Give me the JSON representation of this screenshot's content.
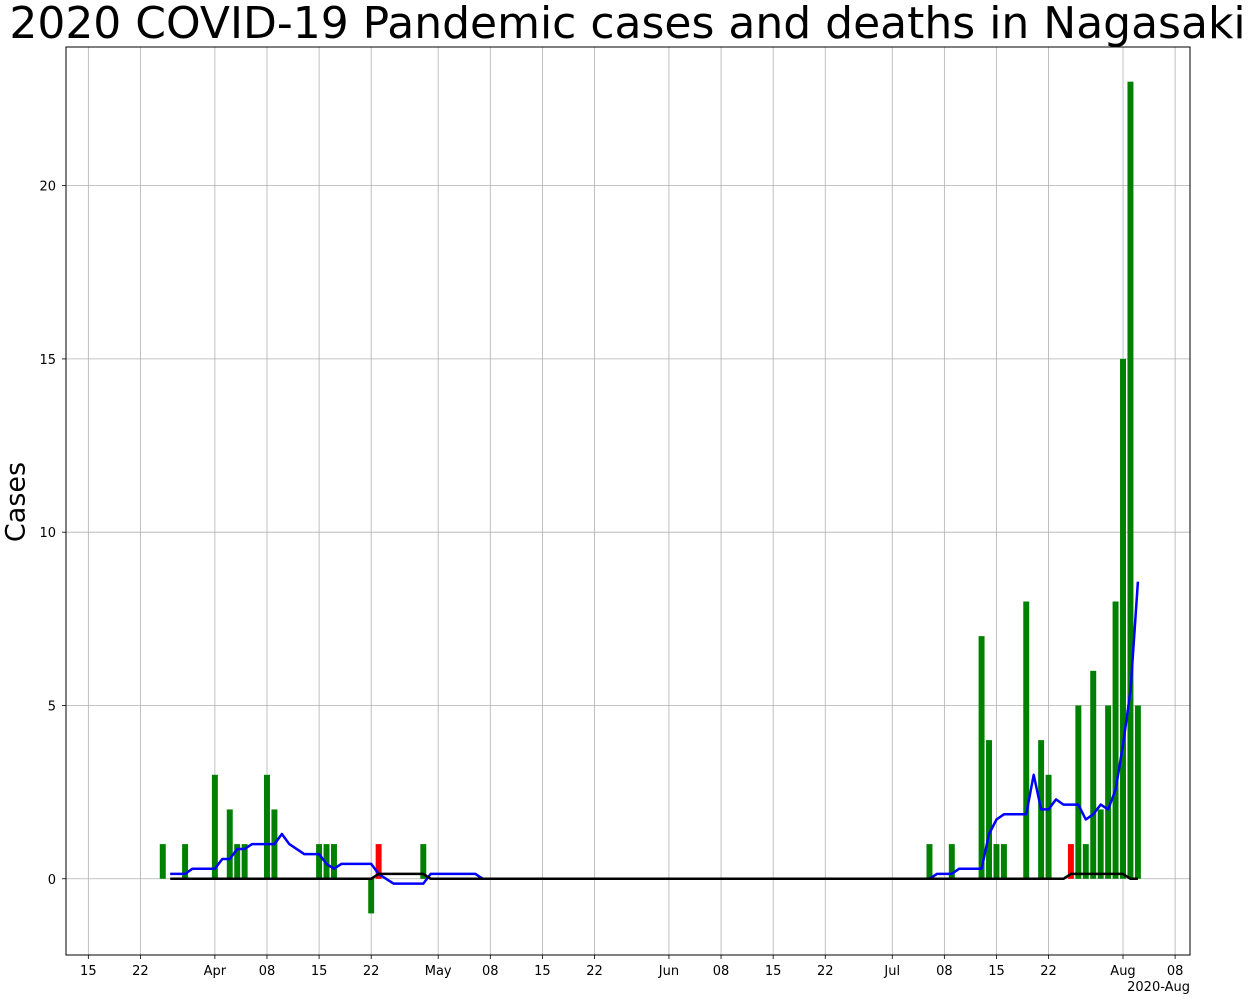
{
  "chart_data": {
    "type": "bar",
    "title": "2020 COVID-19 Pandemic cases and deaths in Nagasaki",
    "ylabel": "Cases",
    "xlabel": "",
    "ylim": [
      -2.2,
      24.0
    ],
    "yticks": [
      0,
      5,
      10,
      15,
      20
    ],
    "x_axis_offset_label": "2020-Aug",
    "x_date_start": "2020-03-12",
    "x_date_end": "2020-08-10",
    "x_ticks": [
      {
        "date": "2020-03-15",
        "label": "15"
      },
      {
        "date": "2020-03-22",
        "label": "22"
      },
      {
        "date": "2020-04-01",
        "label": "Apr"
      },
      {
        "date": "2020-04-08",
        "label": "08"
      },
      {
        "date": "2020-04-15",
        "label": "15"
      },
      {
        "date": "2020-04-22",
        "label": "22"
      },
      {
        "date": "2020-05-01",
        "label": "May"
      },
      {
        "date": "2020-05-08",
        "label": "08"
      },
      {
        "date": "2020-05-15",
        "label": "15"
      },
      {
        "date": "2020-05-22",
        "label": "22"
      },
      {
        "date": "2020-06-01",
        "label": "Jun"
      },
      {
        "date": "2020-06-08",
        "label": "08"
      },
      {
        "date": "2020-06-15",
        "label": "15"
      },
      {
        "date": "2020-06-22",
        "label": "22"
      },
      {
        "date": "2020-07-01",
        "label": "Jul"
      },
      {
        "date": "2020-07-08",
        "label": "08"
      },
      {
        "date": "2020-07-15",
        "label": "15"
      },
      {
        "date": "2020-07-22",
        "label": "22"
      },
      {
        "date": "2020-08-01",
        "label": "Aug"
      },
      {
        "date": "2020-08-08",
        "label": "08"
      }
    ],
    "grid": true,
    "colors": {
      "cases": "#008000",
      "deaths": "#ff0000",
      "average": "#0000ff",
      "deaths_line": "#000000"
    },
    "series": [
      {
        "type": "bar",
        "values": [
          [
            "2020-03-25",
            1
          ],
          [
            "2020-03-28",
            1
          ],
          [
            "2020-04-01",
            3
          ],
          [
            "2020-04-03",
            2
          ],
          [
            "2020-04-04",
            1
          ],
          [
            "2020-04-05",
            1
          ],
          [
            "2020-04-08",
            3
          ],
          [
            "2020-04-09",
            2
          ],
          [
            "2020-04-15",
            1
          ],
          [
            "2020-04-16",
            1
          ],
          [
            "2020-04-17",
            1
          ],
          [
            "2020-04-22",
            -1
          ],
          [
            "2020-04-29",
            1
          ],
          [
            "2020-07-06",
            1
          ],
          [
            "2020-07-09",
            1
          ],
          [
            "2020-07-13",
            7
          ],
          [
            "2020-07-14",
            4
          ],
          [
            "2020-07-15",
            1
          ],
          [
            "2020-07-16",
            1
          ],
          [
            "2020-07-19",
            8
          ],
          [
            "2020-07-21",
            4
          ],
          [
            "2020-07-22",
            3
          ],
          [
            "2020-07-26",
            5
          ],
          [
            "2020-07-27",
            1
          ],
          [
            "2020-07-28",
            6
          ],
          [
            "2020-07-29",
            2
          ],
          [
            "2020-07-30",
            5
          ],
          [
            "2020-07-31",
            8
          ],
          [
            "2020-08-01",
            15
          ],
          [
            "2020-08-02",
            23
          ],
          [
            "2020-08-03",
            5
          ]
        ]
      },
      {
        "type": "bar",
        "values": [
          [
            "2020-04-23",
            1
          ],
          [
            "2020-07-25",
            1
          ]
        ]
      },
      {
        "type": "line",
        "values": [
          [
            "2020-03-26",
            0.14
          ],
          [
            "2020-03-28",
            0.14
          ],
          [
            "2020-03-29",
            0.29
          ],
          [
            "2020-04-01",
            0.29
          ],
          [
            "2020-04-02",
            0.57
          ],
          [
            "2020-04-03",
            0.57
          ],
          [
            "2020-04-04",
            0.86
          ],
          [
            "2020-04-05",
            0.86
          ],
          [
            "2020-04-06",
            1.0
          ],
          [
            "2020-04-09",
            1.0
          ],
          [
            "2020-04-10",
            1.29
          ],
          [
            "2020-04-11",
            1.0
          ],
          [
            "2020-04-13",
            0.71
          ],
          [
            "2020-04-15",
            0.71
          ],
          [
            "2020-04-16",
            0.43
          ],
          [
            "2020-04-17",
            0.29
          ],
          [
            "2020-04-18",
            0.43
          ],
          [
            "2020-04-22",
            0.43
          ],
          [
            "2020-04-23",
            0.14
          ],
          [
            "2020-04-24",
            0.0
          ],
          [
            "2020-04-25",
            -0.14
          ],
          [
            "2020-04-29",
            -0.14
          ],
          [
            "2020-04-30",
            0.14
          ],
          [
            "2020-05-06",
            0.14
          ],
          [
            "2020-05-07",
            0.0
          ],
          [
            "2020-07-06",
            0.0
          ],
          [
            "2020-07-07",
            0.14
          ],
          [
            "2020-07-09",
            0.14
          ],
          [
            "2020-07-10",
            0.29
          ],
          [
            "2020-07-13",
            0.29
          ],
          [
            "2020-07-14",
            1.29
          ],
          [
            "2020-07-15",
            1.71
          ],
          [
            "2020-07-16",
            1.86
          ],
          [
            "2020-07-19",
            1.86
          ],
          [
            "2020-07-20",
            3.0
          ],
          [
            "2020-07-21",
            2.0
          ],
          [
            "2020-07-22",
            2.0
          ],
          [
            "2020-07-23",
            2.29
          ],
          [
            "2020-07-24",
            2.14
          ],
          [
            "2020-07-26",
            2.14
          ],
          [
            "2020-07-27",
            1.71
          ],
          [
            "2020-07-28",
            1.86
          ],
          [
            "2020-07-29",
            2.14
          ],
          [
            "2020-07-30",
            2.0
          ],
          [
            "2020-07-31",
            2.57
          ],
          [
            "2020-08-01",
            3.86
          ],
          [
            "2020-08-02",
            5.43
          ],
          [
            "2020-08-03",
            8.57
          ]
        ]
      },
      {
        "type": "line",
        "values": [
          [
            "2020-03-26",
            0
          ],
          [
            "2020-04-22",
            0
          ],
          [
            "2020-04-23",
            0.14
          ],
          [
            "2020-04-29",
            0.14
          ],
          [
            "2020-04-30",
            0
          ],
          [
            "2020-07-24",
            0
          ],
          [
            "2020-07-25",
            0.14
          ],
          [
            "2020-08-01",
            0.14
          ],
          [
            "2020-08-02",
            0
          ],
          [
            "2020-08-03",
            0
          ]
        ]
      }
    ]
  }
}
